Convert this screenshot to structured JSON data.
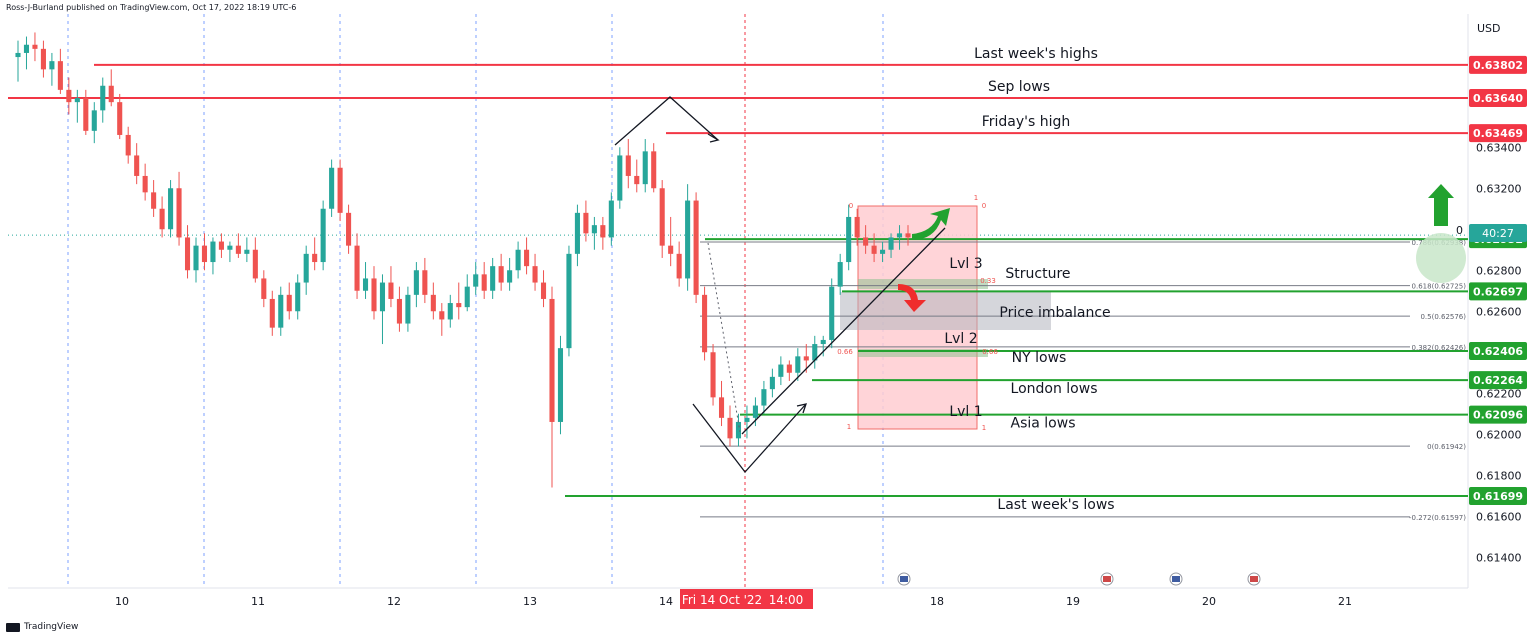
{
  "header": {
    "published_by": "Ross-J-Burland published on TradingView.com, Oct 17, 2022 18:19 UTC-6",
    "currency": "USD"
  },
  "footer": {
    "brand": "TradingView"
  },
  "colors": {
    "bull": "#26a69a",
    "bear": "#ef5350",
    "red_line": "#f23645",
    "green_line": "#22a22f",
    "fib_line": "#787b86",
    "zone_fill": "#ffcdd2",
    "imbalance_fill": "#b2b5be",
    "grid_vline": "#2962ff",
    "arrow_green": "#22a22f",
    "arrow_red": "#ef2c2c",
    "price_tag_teal": "#26a69a"
  },
  "chart_data": {
    "type": "candlestick",
    "title": "",
    "xlabel": "",
    "ylabel": "",
    "y_axis_unit": "USD",
    "ylim": [
      0.6125,
      0.6405
    ],
    "x_tick_labels": [
      "10",
      "11",
      "12",
      "13",
      "14",
      "18",
      "19",
      "20",
      "21"
    ],
    "y_tick_labels": [
      "0.63400",
      "0.63200",
      "0.62800",
      "0.62600",
      "0.62200",
      "0.62000",
      "0.61800",
      "0.61600",
      "0.61400"
    ],
    "crosshair_date_label": "Fri 14 Oct '22",
    "crosshair_time_label": "14:00",
    "countdown_label": "40:27",
    "countdown_value_label": "0",
    "current_price": 0.62952,
    "levels": [
      {
        "name": "Last week's highs",
        "price": 0.63802,
        "tag": "0.63802",
        "color": "red"
      },
      {
        "name": "Sep lows",
        "price": 0.6364,
        "tag": "0.63640",
        "color": "red"
      },
      {
        "name": "Friday's high",
        "price": 0.63469,
        "tag": "0.63469",
        "color": "red"
      },
      {
        "name": "",
        "price": 0.62952,
        "tag": "0.62952",
        "color": "green"
      },
      {
        "name": "",
        "price": 0.62697,
        "tag": "0.62697",
        "color": "green"
      },
      {
        "name": "NY lows",
        "price": 0.62406,
        "tag": "0.62406",
        "color": "green"
      },
      {
        "name": "London lows",
        "price": 0.62264,
        "tag": "0.62264",
        "color": "green"
      },
      {
        "name": "Asia lows",
        "price": 0.62096,
        "tag": "0.62096",
        "color": "green"
      },
      {
        "name": "Last week's lows",
        "price": 0.61699,
        "tag": "0.61699",
        "color": "green"
      }
    ],
    "fibonacci": [
      {
        "label": "0.786(0.62938)",
        "ratio": 0.786,
        "price": 0.62938
      },
      {
        "label": "0.618(0.62725)",
        "ratio": 0.618,
        "price": 0.62725
      },
      {
        "label": "0.5(0.62576)",
        "ratio": 0.5,
        "price": 0.62576
      },
      {
        "label": "0.382(0.62426)",
        "ratio": 0.382,
        "price": 0.62426
      },
      {
        "label": "0(0.61942)",
        "ratio": 0,
        "price": 0.61942
      },
      {
        "label": "-0.272(0.61597)",
        "ratio": -0.272,
        "price": 0.61597
      }
    ],
    "zone_labels": [
      "Lvl 3",
      "Lvl 2",
      "Lvl 1",
      "Structure",
      "Price imbalance"
    ],
    "zone_small_labels": [
      "0",
      "0",
      "1",
      "1",
      "1",
      "0.33",
      "0.66",
      "0.66"
    ],
    "candles": [
      [
        0.6384,
        0.6392,
        0.6372,
        0.6386
      ],
      [
        0.6386,
        0.6394,
        0.6378,
        0.639
      ],
      [
        0.639,
        0.6396,
        0.6382,
        0.6388
      ],
      [
        0.6388,
        0.6392,
        0.6374,
        0.6378
      ],
      [
        0.6378,
        0.6386,
        0.637,
        0.6382
      ],
      [
        0.6382,
        0.6388,
        0.6366,
        0.6368
      ],
      [
        0.6368,
        0.6374,
        0.6356,
        0.6362
      ],
      [
        0.6362,
        0.6368,
        0.6352,
        0.6364
      ],
      [
        0.6364,
        0.6368,
        0.6346,
        0.6348
      ],
      [
        0.6348,
        0.6362,
        0.6342,
        0.6358
      ],
      [
        0.6358,
        0.6374,
        0.6352,
        0.637
      ],
      [
        0.637,
        0.6378,
        0.636,
        0.6362
      ],
      [
        0.6362,
        0.6366,
        0.6344,
        0.6346
      ],
      [
        0.6346,
        0.635,
        0.6332,
        0.6336
      ],
      [
        0.6336,
        0.6342,
        0.6322,
        0.6326
      ],
      [
        0.6326,
        0.6332,
        0.6314,
        0.6318
      ],
      [
        0.6318,
        0.6324,
        0.6306,
        0.631
      ],
      [
        0.631,
        0.6316,
        0.6296,
        0.63
      ],
      [
        0.63,
        0.6324,
        0.6296,
        0.632
      ],
      [
        0.632,
        0.6328,
        0.6292,
        0.6296
      ],
      [
        0.6296,
        0.6302,
        0.6276,
        0.628
      ],
      [
        0.628,
        0.6296,
        0.6274,
        0.6292
      ],
      [
        0.6292,
        0.6298,
        0.628,
        0.6284
      ],
      [
        0.6284,
        0.6296,
        0.6278,
        0.6294
      ],
      [
        0.6294,
        0.6298,
        0.6286,
        0.629
      ],
      [
        0.629,
        0.6294,
        0.6284,
        0.6292
      ],
      [
        0.6292,
        0.6298,
        0.6286,
        0.6288
      ],
      [
        0.6288,
        0.6296,
        0.6284,
        0.629
      ],
      [
        0.629,
        0.6296,
        0.6274,
        0.6276
      ],
      [
        0.6276,
        0.628,
        0.6262,
        0.6266
      ],
      [
        0.6266,
        0.627,
        0.6248,
        0.6252
      ],
      [
        0.6252,
        0.6272,
        0.6248,
        0.6268
      ],
      [
        0.6268,
        0.6274,
        0.6256,
        0.626
      ],
      [
        0.626,
        0.6278,
        0.6256,
        0.6274
      ],
      [
        0.6274,
        0.6292,
        0.6268,
        0.6288
      ],
      [
        0.6288,
        0.6296,
        0.628,
        0.6284
      ],
      [
        0.6284,
        0.6314,
        0.628,
        0.631
      ],
      [
        0.631,
        0.6334,
        0.6306,
        0.633
      ],
      [
        0.633,
        0.6334,
        0.6304,
        0.6308
      ],
      [
        0.6308,
        0.6312,
        0.6288,
        0.6292
      ],
      [
        0.6292,
        0.6298,
        0.6266,
        0.627
      ],
      [
        0.627,
        0.6284,
        0.6266,
        0.6276
      ],
      [
        0.6276,
        0.6282,
        0.6256,
        0.626
      ],
      [
        0.626,
        0.6278,
        0.6244,
        0.6274
      ],
      [
        0.6274,
        0.6282,
        0.6262,
        0.6266
      ],
      [
        0.6266,
        0.6272,
        0.625,
        0.6254
      ],
      [
        0.6254,
        0.6272,
        0.625,
        0.6268
      ],
      [
        0.6268,
        0.6284,
        0.6262,
        0.628
      ],
      [
        0.628,
        0.6286,
        0.6264,
        0.6268
      ],
      [
        0.6268,
        0.6274,
        0.6256,
        0.626
      ],
      [
        0.626,
        0.6264,
        0.6248,
        0.6256
      ],
      [
        0.6256,
        0.6268,
        0.6252,
        0.6264
      ],
      [
        0.6264,
        0.6274,
        0.6256,
        0.6262
      ],
      [
        0.6262,
        0.6278,
        0.626,
        0.6272
      ],
      [
        0.6272,
        0.6284,
        0.6268,
        0.6278
      ],
      [
        0.6278,
        0.6284,
        0.6266,
        0.627
      ],
      [
        0.627,
        0.6286,
        0.6266,
        0.6282
      ],
      [
        0.6282,
        0.6288,
        0.627,
        0.6274
      ],
      [
        0.6274,
        0.6286,
        0.627,
        0.628
      ],
      [
        0.628,
        0.6294,
        0.6276,
        0.629
      ],
      [
        0.629,
        0.6296,
        0.6278,
        0.6282
      ],
      [
        0.6282,
        0.6288,
        0.627,
        0.6274
      ],
      [
        0.6274,
        0.628,
        0.6262,
        0.6266
      ],
      [
        0.6266,
        0.6272,
        0.6174,
        0.6206
      ],
      [
        0.6206,
        0.6248,
        0.62,
        0.6242
      ],
      [
        0.6242,
        0.6292,
        0.6238,
        0.6288
      ],
      [
        0.6288,
        0.6312,
        0.6282,
        0.6308
      ],
      [
        0.6308,
        0.6314,
        0.6294,
        0.6298
      ],
      [
        0.6298,
        0.6306,
        0.629,
        0.6302
      ],
      [
        0.6302,
        0.6306,
        0.629,
        0.6296
      ],
      [
        0.6296,
        0.6318,
        0.6292,
        0.6314
      ],
      [
        0.6314,
        0.634,
        0.631,
        0.6336
      ],
      [
        0.6336,
        0.6344,
        0.632,
        0.6326
      ],
      [
        0.6326,
        0.6334,
        0.6318,
        0.6322
      ],
      [
        0.6322,
        0.6344,
        0.6318,
        0.6338
      ],
      [
        0.6338,
        0.6342,
        0.6318,
        0.632
      ],
      [
        0.632,
        0.6324,
        0.6286,
        0.6292
      ],
      [
        0.6292,
        0.6306,
        0.6282,
        0.6288
      ],
      [
        0.6288,
        0.6294,
        0.6272,
        0.6276
      ],
      [
        0.6276,
        0.6322,
        0.627,
        0.6314
      ],
      [
        0.6314,
        0.6318,
        0.6264,
        0.6268
      ],
      [
        0.6268,
        0.6272,
        0.6236,
        0.624
      ],
      [
        0.624,
        0.6244,
        0.6214,
        0.6218
      ],
      [
        0.6218,
        0.6226,
        0.6204,
        0.6208
      ],
      [
        0.6208,
        0.6214,
        0.6194,
        0.6198
      ],
      [
        0.6198,
        0.621,
        0.6194,
        0.6206
      ],
      [
        0.6206,
        0.6214,
        0.6198,
        0.6208
      ],
      [
        0.6208,
        0.6218,
        0.6204,
        0.6214
      ],
      [
        0.6214,
        0.6226,
        0.621,
        0.6222
      ],
      [
        0.6222,
        0.6232,
        0.6218,
        0.6228
      ],
      [
        0.6228,
        0.6238,
        0.6224,
        0.6234
      ],
      [
        0.6234,
        0.6236,
        0.6226,
        0.623
      ],
      [
        0.623,
        0.6242,
        0.6226,
        0.6238
      ],
      [
        0.6238,
        0.6244,
        0.623,
        0.6236
      ],
      [
        0.6236,
        0.6248,
        0.6232,
        0.6244
      ],
      [
        0.6244,
        0.6248,
        0.6238,
        0.6246
      ],
      [
        0.6246,
        0.6276,
        0.6242,
        0.6272
      ],
      [
        0.6272,
        0.6288,
        0.6268,
        0.6284
      ],
      [
        0.6284,
        0.6312,
        0.628,
        0.6306
      ],
      [
        0.6306,
        0.631,
        0.6292,
        0.6296
      ],
      [
        0.6296,
        0.6302,
        0.6288,
        0.6292
      ],
      [
        0.6292,
        0.6298,
        0.6284,
        0.6288
      ],
      [
        0.6288,
        0.6294,
        0.6284,
        0.629
      ],
      [
        0.629,
        0.6298,
        0.6286,
        0.6296
      ],
      [
        0.6296,
        0.6302,
        0.629,
        0.6298
      ],
      [
        0.6298,
        0.6302,
        0.6292,
        0.6296
      ]
    ]
  }
}
